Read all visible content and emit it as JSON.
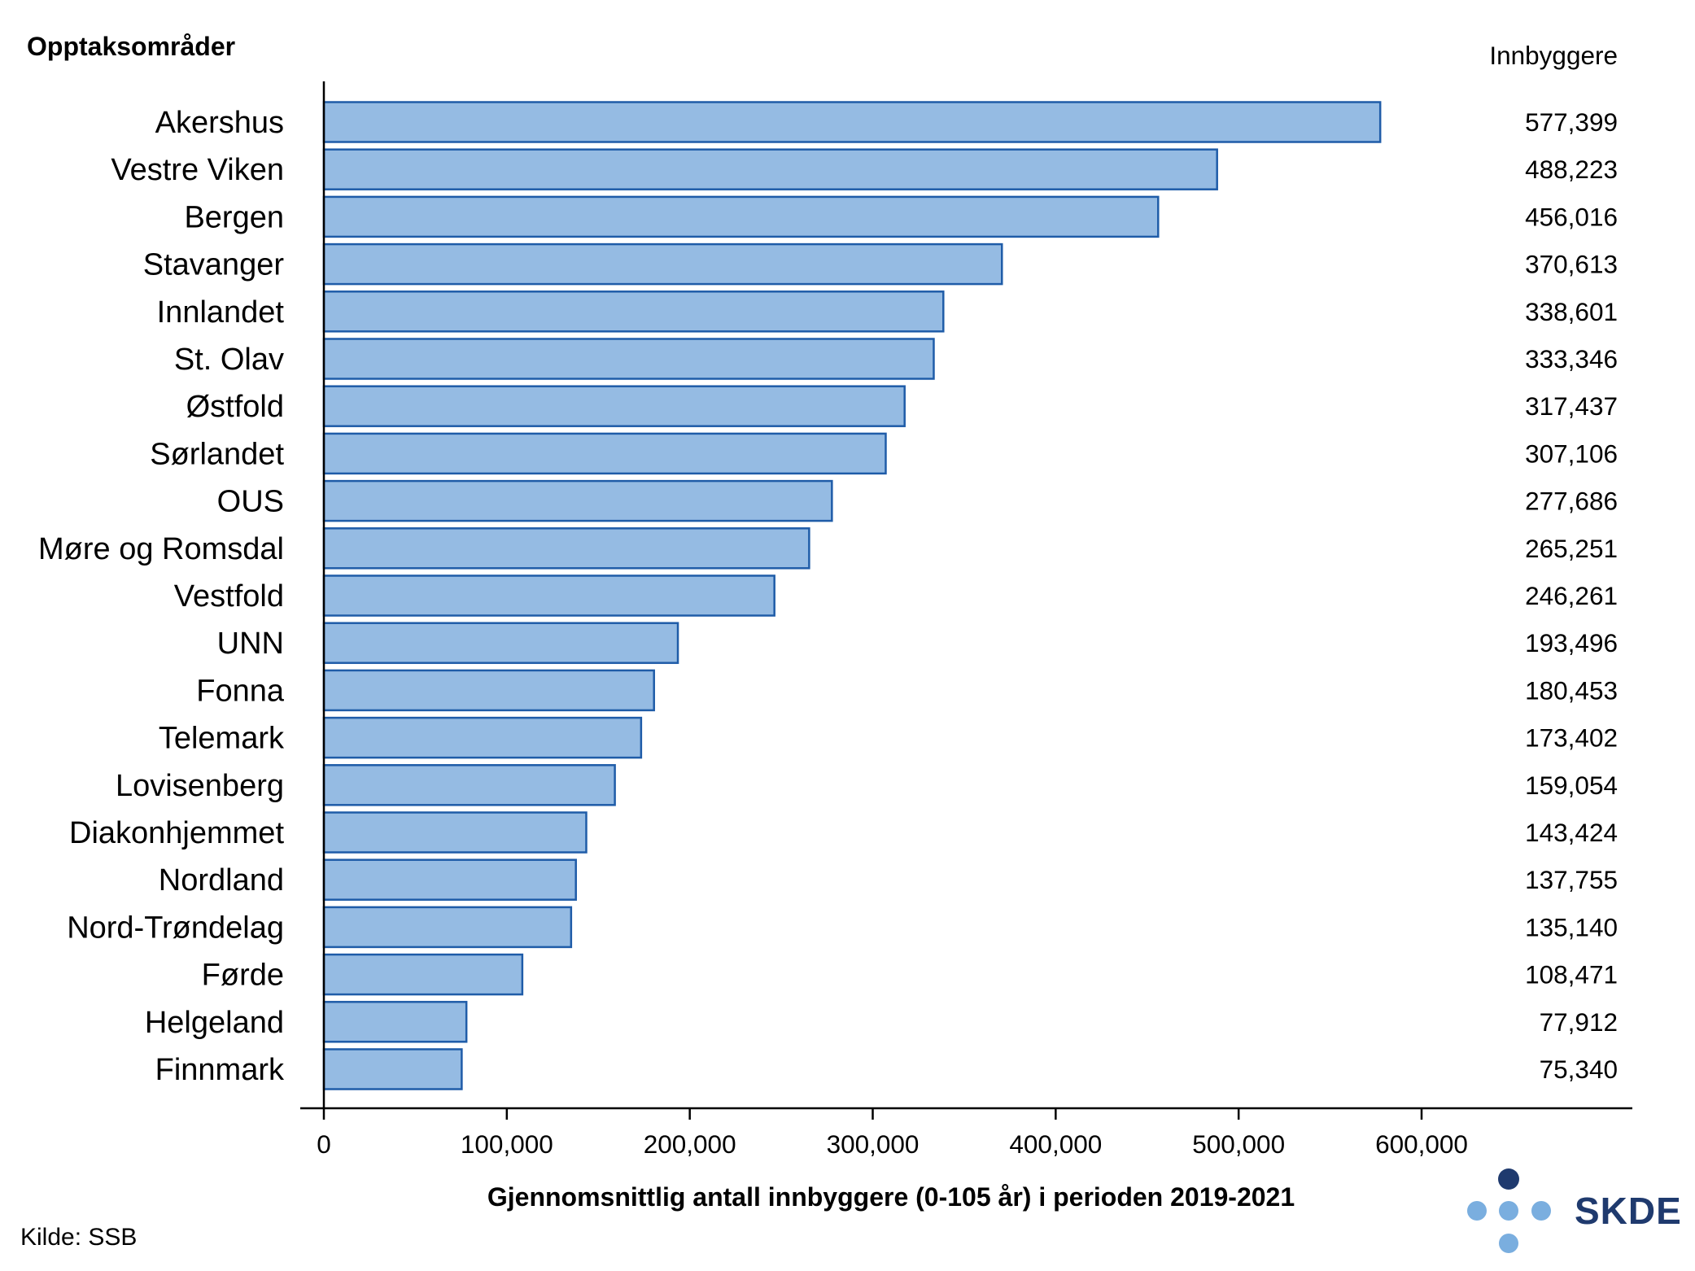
{
  "chart_data": {
    "type": "bar",
    "orientation": "horizontal",
    "title": "Opptaksområder",
    "value_column_header": "Innbyggere",
    "xlabel": "Gjennomsnittlig antall innbyggere (0-105 år) i perioden 2019-2021",
    "xlim": [
      0,
      685000
    ],
    "x_ticks": [
      0,
      100000,
      200000,
      300000,
      400000,
      500000,
      600000
    ],
    "x_tick_labels": [
      "0",
      "100,000",
      "200,000",
      "300,000",
      "400,000",
      "500,000",
      "600,000"
    ],
    "grid": false,
    "categories": [
      "Akershus",
      "Vestre Viken",
      "Bergen",
      "Stavanger",
      "Innlandet",
      "St. Olav",
      "Østfold",
      "Sørlandet",
      "OUS",
      "Møre og Romsdal",
      "Vestfold",
      "UNN",
      "Fonna",
      "Telemark",
      "Lovisenberg",
      "Diakonhjemmet",
      "Nordland",
      "Nord-Trøndelag",
      "Førde",
      "Helgeland",
      "Finnmark"
    ],
    "values": [
      577399,
      488223,
      456016,
      370613,
      338601,
      333346,
      317437,
      307106,
      277686,
      265251,
      246261,
      193496,
      180453,
      173402,
      159054,
      143424,
      137755,
      135140,
      108471,
      77912,
      75340
    ],
    "value_labels": [
      "577,399",
      "488,223",
      "456,016",
      "370,613",
      "338,601",
      "333,346",
      "317,437",
      "307,106",
      "277,686",
      "265,251",
      "246,261",
      "193,496",
      "180,453",
      "173,402",
      "159,054",
      "143,424",
      "137,755",
      "135,140",
      "108,471",
      "77,912",
      "75,340"
    ],
    "colors": {
      "bar_fill": "#95bbe3",
      "bar_stroke": "#1f5ca8",
      "axis": "#000000"
    }
  },
  "source": "Kilde: SSB",
  "logo": {
    "text": "SKDE",
    "colors": {
      "text": "#1f3a6e",
      "dark_dot": "#1f3a6e",
      "light_dot": "#7aaedf"
    }
  }
}
